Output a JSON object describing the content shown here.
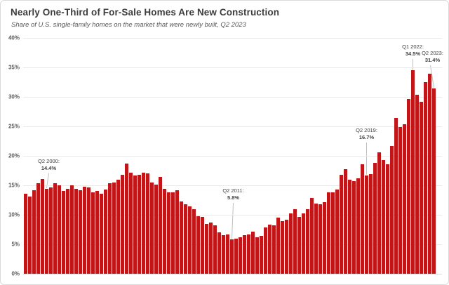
{
  "header": {
    "title": "Nearly One-Third of For-Sale Homes Are New Construction",
    "subtitle": "Share of U.S. single-family homes on the market that were newly built, Q2 2023"
  },
  "chart_data": {
    "type": "bar",
    "title": "Nearly One-Third of For-Sale Homes Are New Construction",
    "subtitle": "Share of U.S. single-family homes on the market that were newly built, Q2 2023",
    "x_axis": {
      "start": "Q1 1999",
      "end": "Q2 2023",
      "interval": "quarterly",
      "tick_labels_visible": false
    },
    "y_axis": {
      "min": 0,
      "max": 40,
      "step": 5,
      "tick_labels": [
        "0%",
        "5%",
        "10%",
        "15%",
        "20%",
        "25%",
        "30%",
        "35%",
        "40%"
      ]
    },
    "grid": "horizontal",
    "bar_color": "#c11518",
    "values": [
      13.6,
      13.1,
      14.2,
      15.4,
      16.1,
      14.4,
      14.6,
      15.4,
      15.0,
      14.0,
      14.4,
      15.0,
      14.4,
      14.2,
      14.8,
      14.6,
      13.8,
      14.0,
      13.6,
      14.3,
      15.4,
      15.5,
      16.0,
      16.8,
      18.7,
      17.1,
      16.7,
      16.8,
      17.2,
      17.0,
      15.5,
      15.1,
      16.4,
      14.4,
      13.8,
      13.8,
      14.2,
      12.3,
      11.8,
      11.4,
      11.0,
      9.8,
      9.6,
      8.5,
      8.7,
      8.2,
      7.0,
      6.5,
      6.7,
      5.8,
      5.9,
      6.2,
      6.6,
      6.7,
      7.1,
      6.2,
      6.4,
      7.8,
      8.3,
      8.2,
      9.5,
      8.9,
      9.2,
      10.2,
      10.9,
      9.7,
      10.2,
      11.0,
      12.8,
      11.9,
      11.8,
      12.2,
      13.8,
      13.8,
      14.3,
      16.8,
      17.7,
      16.0,
      15.7,
      16.2,
      18.6,
      16.7,
      16.9,
      18.8,
      20.6,
      19.3,
      18.6,
      21.7,
      26.4,
      24.9,
      25.4,
      29.7,
      34.5,
      30.3,
      29.2,
      32.5,
      33.9,
      31.4
    ],
    "annotations": [
      {
        "quarter": "Q2 2000",
        "bar_index": 5,
        "line1": "Q2 2000:",
        "line2": "14.4%",
        "value": 14.4
      },
      {
        "quarter": "Q2 2011",
        "bar_index": 49,
        "line1": "Q2 2011:",
        "line2": "5.8%",
        "value": 5.8
      },
      {
        "quarter": "Q2 2019",
        "bar_index": 81,
        "line1": "Q2 2019:",
        "line2": "16.7%",
        "value": 16.7
      },
      {
        "quarter": "Q1 2022",
        "bar_index": 92,
        "line1": "Q1 2022:",
        "line2": "34.5%",
        "value": 34.5
      },
      {
        "quarter": "Q2 2023",
        "bar_index": 97,
        "line1": "Q2 2023:",
        "line2": "31.4%",
        "value": 31.4
      }
    ]
  }
}
